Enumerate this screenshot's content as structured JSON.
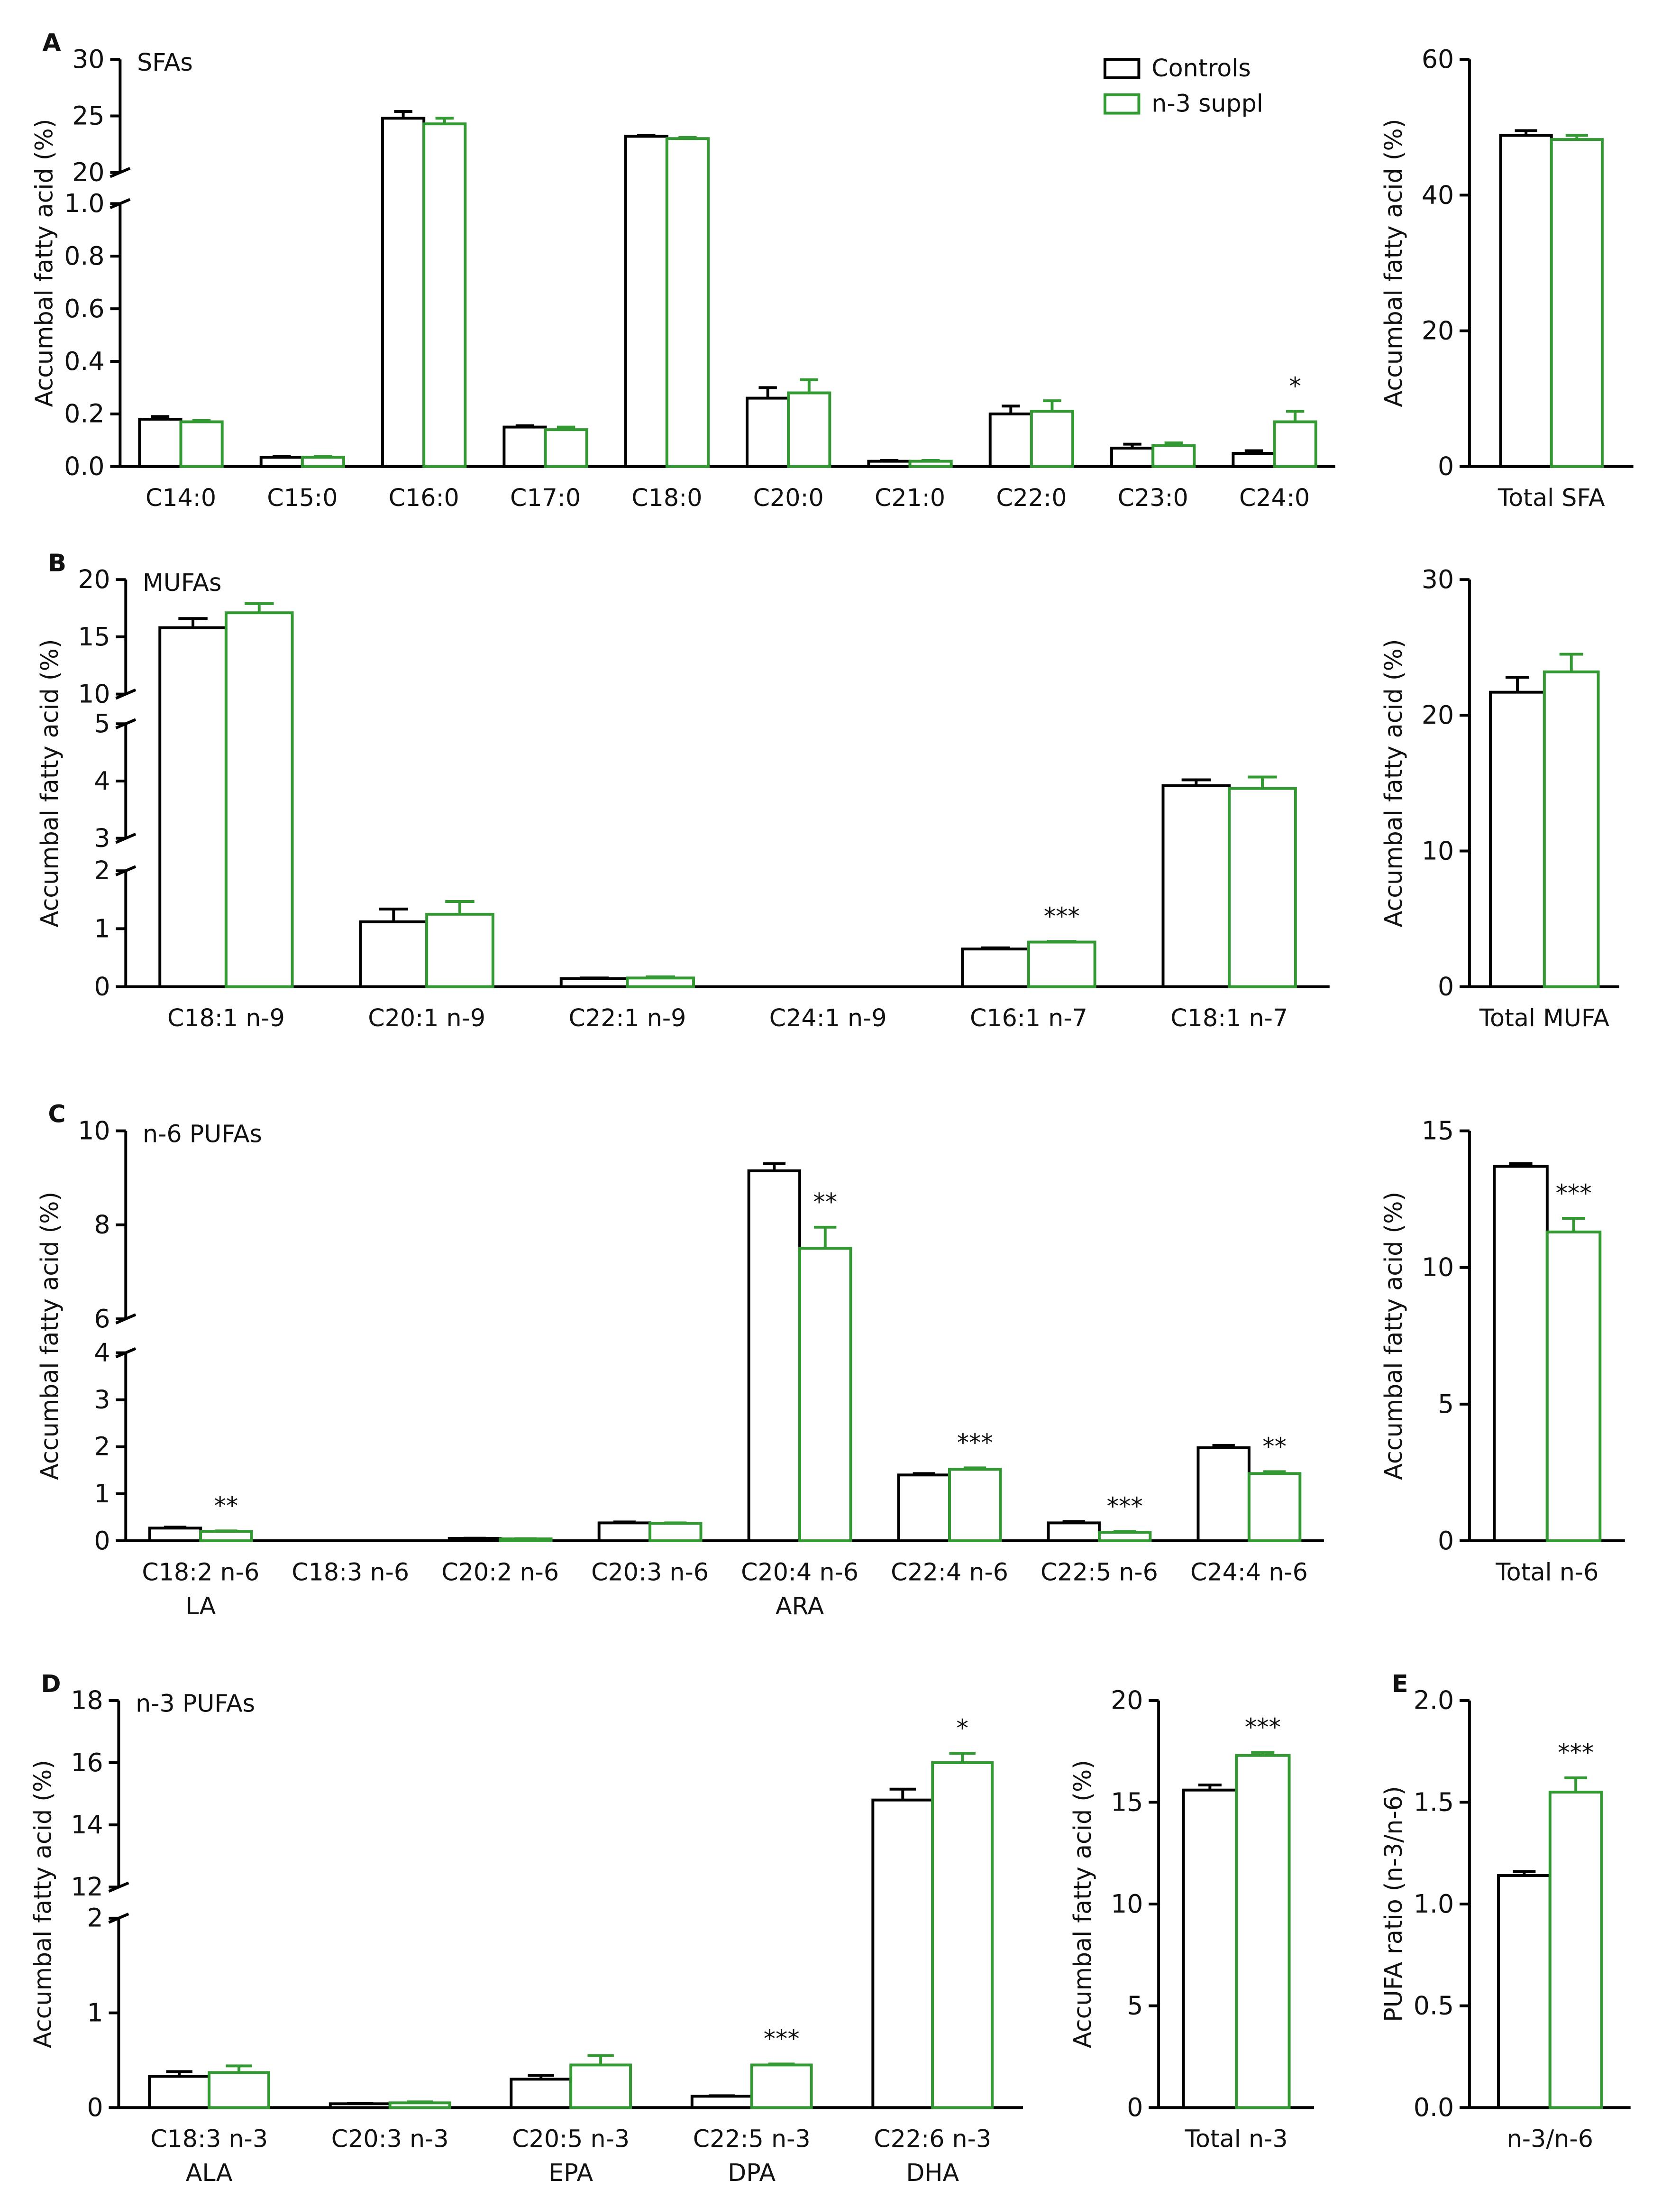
{
  "chart_data": [
    {
      "type": "bar",
      "panel": "A",
      "subtitle": "SFAs",
      "ylabel": "Accumbal fatty acid (%)",
      "categories": [
        "C14:0",
        "C15:0",
        "C16:0",
        "C17:0",
        "C18:0",
        "C20:0",
        "C21:0",
        "C22:0",
        "C23:0",
        "C24:0"
      ],
      "series": [
        {
          "name": "Controls",
          "color": "#000000",
          "values": [
            0.18,
            0.035,
            24.8,
            0.15,
            23.2,
            0.26,
            0.02,
            0.2,
            0.07,
            0.05
          ],
          "errors": [
            0.01,
            0.003,
            0.6,
            0.005,
            0.1,
            0.04,
            0.003,
            0.03,
            0.015,
            0.01
          ]
        },
        {
          "name": "n-3 suppl",
          "color": "#339933",
          "values": [
            0.17,
            0.035,
            24.3,
            0.14,
            23.0,
            0.28,
            0.02,
            0.21,
            0.08,
            0.17
          ],
          "errors": [
            0.005,
            0.003,
            0.5,
            0.01,
            0.1,
            0.05,
            0.003,
            0.04,
            0.01,
            0.04
          ]
        }
      ],
      "significance": [
        null,
        null,
        null,
        null,
        null,
        null,
        null,
        null,
        null,
        "*"
      ],
      "ylim": [
        [
          0,
          1.0
        ],
        [
          20,
          30
        ]
      ],
      "yticks": [
        [
          {
            "value": 0,
            "label": "0.0"
          },
          {
            "value": 0.2,
            "label": "0.2"
          },
          {
            "value": 0.4,
            "label": "0.4"
          },
          {
            "value": 0.6,
            "label": "0.6"
          },
          {
            "value": 0.8,
            "label": "0.8"
          },
          {
            "value": 1.0,
            "label": "1.0"
          }
        ],
        [
          20,
          25,
          30
        ]
      ]
    },
    {
      "type": "bar",
      "ylabel": "Accumbal fatty acid (%)",
      "categories": [
        "Total SFA"
      ],
      "series": [
        {
          "color": "#000000",
          "values": [
            48.8
          ],
          "errors": [
            0.7
          ]
        },
        {
          "color": "#339933",
          "values": [
            48.2
          ],
          "errors": [
            0.6
          ]
        }
      ],
      "significance": [
        null
      ],
      "ylim": [
        [
          0,
          60
        ]
      ],
      "yticks": [
        [
          0,
          20,
          40,
          60
        ]
      ]
    },
    {
      "type": "bar",
      "panel": "B",
      "subtitle": "MUFAs",
      "ylabel": "Accumbal fatty acid (%)",
      "categories": [
        "C18:1 n-9",
        "C20:1 n-9",
        "C22:1 n-9",
        "C24:1 n-9",
        "C16:1 n-7",
        "C18:1 n-7"
      ],
      "series": [
        {
          "color": "#000000",
          "values": [
            15.8,
            1.12,
            0.14,
            null,
            0.65,
            3.92
          ],
          "errors": [
            0.8,
            0.22,
            0.01,
            null,
            0.02,
            0.1
          ]
        },
        {
          "color": "#339933",
          "values": [
            17.1,
            1.25,
            0.15,
            null,
            0.77,
            3.87
          ],
          "errors": [
            0.8,
            0.22,
            0.02,
            null,
            0.01,
            0.2
          ]
        }
      ],
      "significance": [
        null,
        null,
        null,
        null,
        "***",
        null
      ],
      "ylim": [
        [
          0,
          2
        ],
        [
          3,
          5
        ],
        [
          10,
          20
        ]
      ],
      "yticks": [
        [
          0,
          1,
          2
        ],
        [
          3,
          4,
          5
        ],
        [
          10,
          15,
          20
        ]
      ]
    },
    {
      "type": "bar",
      "ylabel": "Accumbal fatty acid (%)",
      "categories": [
        "Total MUFA"
      ],
      "series": [
        {
          "color": "#000000",
          "values": [
            21.7
          ],
          "errors": [
            1.1
          ]
        },
        {
          "color": "#339933",
          "values": [
            23.2
          ],
          "errors": [
            1.3
          ]
        }
      ],
      "significance": [
        null
      ],
      "ylim": [
        [
          0,
          30
        ]
      ],
      "yticks": [
        [
          0,
          10,
          20,
          30
        ]
      ]
    },
    {
      "type": "bar",
      "panel": "C",
      "subtitle": "n-6 PUFAs",
      "ylabel": "Accumbal fatty acid (%)",
      "categories": [
        "C18:2 n-6",
        "C18:3 n-6",
        "C20:2 n-6",
        "C20:3 n-6",
        "C20:4 n-6",
        "C22:4 n-6",
        "C22:5 n-6",
        "C24:4 n-6"
      ],
      "category_sublabels": [
        "LA",
        null,
        null,
        null,
        "ARA",
        null,
        null,
        null
      ],
      "series": [
        {
          "color": "#000000",
          "values": [
            0.27,
            null,
            0.05,
            0.38,
            9.15,
            1.4,
            0.38,
            1.98
          ],
          "errors": [
            0.02,
            null,
            0.005,
            0.02,
            0.15,
            0.03,
            0.03,
            0.05
          ]
        },
        {
          "color": "#339933",
          "values": [
            0.2,
            null,
            0.04,
            0.37,
            7.5,
            1.52,
            0.18,
            1.43
          ],
          "errors": [
            0.01,
            null,
            0.005,
            0.01,
            0.45,
            0.03,
            0.02,
            0.04
          ]
        }
      ],
      "significance": [
        "**",
        null,
        null,
        null,
        "**",
        "***",
        "***",
        "**"
      ],
      "ylim": [
        [
          0,
          4
        ],
        [
          6,
          10
        ]
      ],
      "yticks": [
        [
          0,
          1,
          2,
          3,
          4
        ],
        [
          6,
          8,
          10
        ]
      ]
    },
    {
      "type": "bar",
      "ylabel": "Accumbal fatty acid (%)",
      "categories": [
        "Total n-6"
      ],
      "series": [
        {
          "color": "#000000",
          "values": [
            13.7
          ],
          "errors": [
            0.1
          ]
        },
        {
          "color": "#339933",
          "values": [
            11.3
          ],
          "errors": [
            0.5
          ]
        }
      ],
      "significance": [
        "***"
      ],
      "ylim": [
        [
          0,
          15
        ]
      ],
      "yticks": [
        [
          0,
          5,
          10,
          15
        ]
      ]
    },
    {
      "type": "bar",
      "panel": "D",
      "subtitle": "n-3 PUFAs",
      "ylabel": "Accumbal fatty acid (%)",
      "categories": [
        "C18:3 n-3",
        "C20:3 n-3",
        "C20:5 n-3",
        "C22:5 n-3",
        "C22:6 n-3"
      ],
      "category_sublabels": [
        "ALA",
        null,
        "EPA",
        "DPA",
        "DHA"
      ],
      "series": [
        {
          "color": "#000000",
          "values": [
            0.33,
            0.04,
            0.3,
            0.12,
            14.8
          ],
          "errors": [
            0.05,
            0.005,
            0.04,
            0.005,
            0.35
          ]
        },
        {
          "color": "#339933",
          "values": [
            0.37,
            0.05,
            0.45,
            0.45,
            16.0
          ],
          "errors": [
            0.07,
            0.01,
            0.1,
            0.01,
            0.3
          ]
        }
      ],
      "significance": [
        null,
        null,
        null,
        "***",
        "*"
      ],
      "ylim": [
        [
          0,
          2
        ],
        [
          12,
          18
        ]
      ],
      "yticks": [
        [
          0,
          1,
          2
        ],
        [
          12,
          14,
          16,
          18
        ]
      ]
    },
    {
      "type": "bar",
      "ylabel": "Accumbal fatty acid (%)",
      "categories": [
        "Total n-3"
      ],
      "series": [
        {
          "color": "#000000",
          "values": [
            15.6
          ],
          "errors": [
            0.25
          ]
        },
        {
          "color": "#339933",
          "values": [
            17.3
          ],
          "errors": [
            0.15
          ]
        }
      ],
      "significance": [
        "***"
      ],
      "ylim": [
        [
          0,
          20
        ]
      ],
      "yticks": [
        [
          0,
          5,
          10,
          15,
          20
        ]
      ]
    },
    {
      "type": "bar",
      "panel": "E",
      "ylabel": "PUFA ratio (n-3/n-6)",
      "categories": [
        "n-3/n-6"
      ],
      "series": [
        {
          "color": "#000000",
          "values": [
            1.14
          ],
          "errors": [
            0.02
          ]
        },
        {
          "color": "#339933",
          "values": [
            1.55
          ],
          "errors": [
            0.07
          ]
        }
      ],
      "significance": [
        "***"
      ],
      "ylim": [
        [
          0,
          2.0
        ]
      ],
      "yticks": [
        [
          {
            "value": 0,
            "label": "0.0"
          },
          {
            "value": 0.5,
            "label": "0.5"
          },
          {
            "value": 1.0,
            "label": "1.0"
          },
          {
            "value": 1.5,
            "label": "1.5"
          },
          {
            "value": 2.0,
            "label": "2.0"
          }
        ]
      ]
    }
  ]
}
